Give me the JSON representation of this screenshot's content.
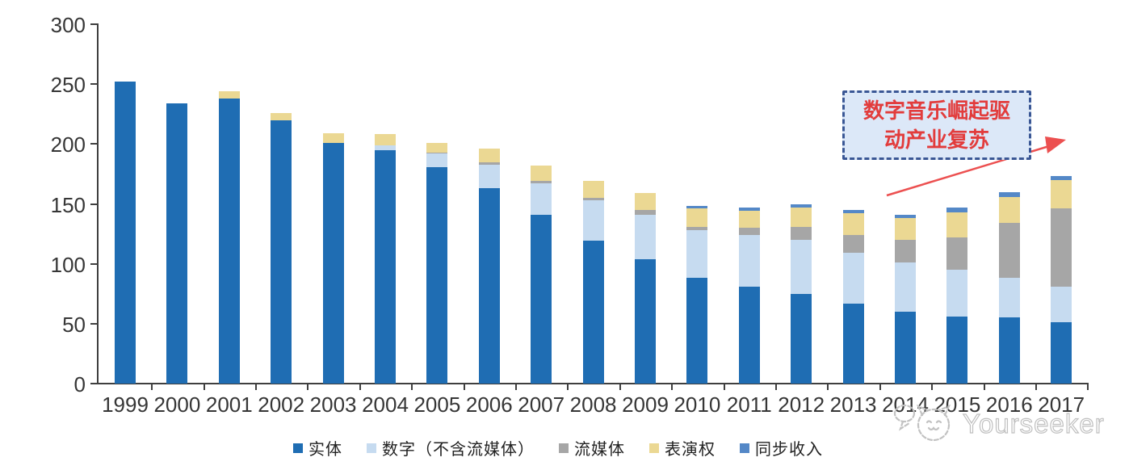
{
  "chart_data": {
    "type": "bar",
    "stacked": true,
    "categories": [
      "1999",
      "2000",
      "2001",
      "2002",
      "2003",
      "2004",
      "2005",
      "2006",
      "2007",
      "2008",
      "2009",
      "2010",
      "2011",
      "2012",
      "2013",
      "2014",
      "2015",
      "2016",
      "2017"
    ],
    "series": [
      {
        "name": "实体",
        "color": "#1f6db3",
        "values": [
          252,
          234,
          238,
          220,
          201,
          195,
          181,
          163,
          141,
          119,
          104,
          88,
          81,
          75,
          67,
          60,
          56,
          55,
          51
        ]
      },
      {
        "name": "数字（不含流媒体）",
        "color": "#c6dbf0",
        "values": [
          0,
          0,
          0,
          0,
          0,
          4,
          11,
          20,
          26,
          34,
          37,
          40,
          43,
          45,
          42,
          41,
          39,
          33,
          30
        ]
      },
      {
        "name": "流媒体",
        "color": "#a6a6a6",
        "values": [
          0,
          0,
          0,
          0,
          0,
          0,
          1,
          2,
          2,
          2,
          4,
          3,
          6,
          11,
          15,
          19,
          27,
          46,
          65
        ]
      },
      {
        "name": "表演权",
        "color": "#ebd893",
        "values": [
          0,
          0,
          6,
          6,
          8,
          9,
          8,
          11,
          13,
          14,
          14,
          15,
          14,
          16,
          18,
          18,
          21,
          22,
          24
        ]
      },
      {
        "name": "同步收入",
        "color": "#5488c7",
        "values": [
          0,
          0,
          0,
          0,
          0,
          0,
          0,
          0,
          0,
          0,
          0,
          2,
          3,
          3,
          3,
          3,
          4,
          4,
          3
        ]
      }
    ],
    "ylim": [
      0,
      300
    ],
    "yticks": [
      0,
      50,
      100,
      150,
      200,
      250,
      300
    ],
    "grid": false,
    "legend_position": "bottom"
  },
  "annotation": {
    "line1": "数字音乐崛起驱",
    "line2": "动产业复苏",
    "text_color": "#e23c3c",
    "border_color": "#3a5795",
    "fill_color": "#dce8f8",
    "arrow_color": "#ec5050"
  },
  "watermark": {
    "text": "Yourseeker",
    "color": "#c0c0c0"
  }
}
